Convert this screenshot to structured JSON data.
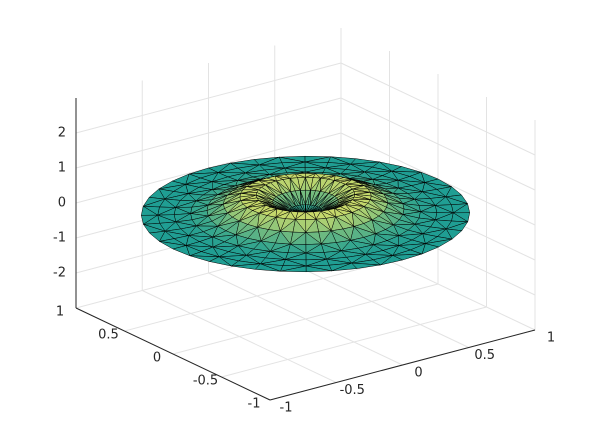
{
  "chart_data": {
    "type": "surface",
    "r": [
      0,
      0.1,
      0.2,
      0.3,
      0.4,
      0.5,
      0.6,
      0.7,
      0.8,
      0.9,
      1
    ],
    "z": [
      0,
      0.1,
      0.35,
      0.55,
      0.5,
      0.3,
      0.12,
      0.04,
      0.01,
      0,
      0
    ],
    "colormap": [
      "#1f9e93",
      "#cfdc6a"
    ],
    "edge_color": "#000000",
    "xlim": [
      -1,
      1
    ],
    "xticks": [
      -1,
      -0.5,
      0,
      0.5,
      1
    ],
    "ylim": [
      -1,
      1
    ],
    "yticks": [
      -1,
      -0.5,
      0,
      0.5,
      1
    ],
    "zlim": [
      -3,
      3
    ],
    "zticks": [
      -2,
      -1,
      0,
      1,
      2
    ],
    "grid": true
  }
}
